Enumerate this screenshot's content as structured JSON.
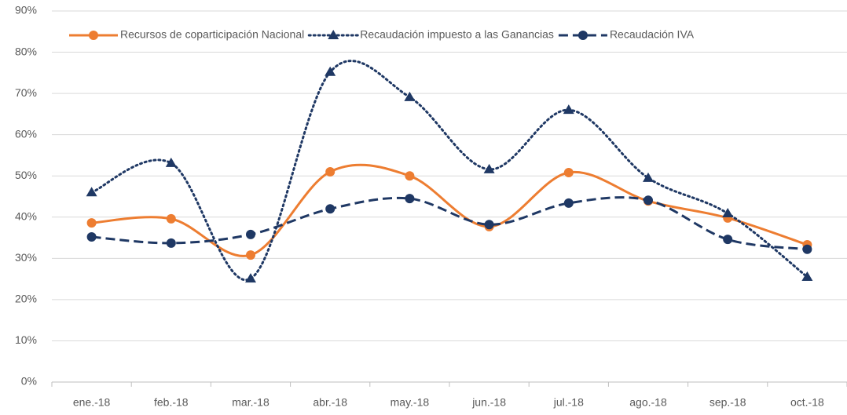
{
  "chart_data": {
    "type": "line",
    "categories": [
      "ene.-18",
      "feb.-18",
      "mar.-18",
      "abr.-18",
      "may.-18",
      "jun.-18",
      "jul.-18",
      "ago.-18",
      "sep.-18",
      "oct.-18"
    ],
    "series": [
      {
        "name": "Recursos de coparticipación Nacional",
        "color": "#ed7d31",
        "dash": "solid",
        "marker": "circle",
        "smooth": true,
        "values": [
          38.6,
          39.6,
          30.8,
          51,
          50,
          37.7,
          50.8,
          43.9,
          39.8,
          33.3
        ]
      },
      {
        "name": "Recaudación impuesto a las Ganancias",
        "color": "#1f3864",
        "dash": "dotted",
        "marker": "triangle",
        "smooth": true,
        "values": [
          46,
          53.1,
          25.1,
          75.2,
          69.1,
          51.6,
          66,
          49.5,
          40.9,
          25.5
        ]
      },
      {
        "name": "Recaudación IVA",
        "color": "#1f3864",
        "dash": "dashed",
        "marker": "circle",
        "smooth": true,
        "values": [
          35.2,
          33.7,
          35.8,
          42,
          44.5,
          38.2,
          43.4,
          44.1,
          34.6,
          32.2
        ]
      }
    ],
    "ylim": [
      0,
      90
    ],
    "yticks": [
      {
        "value": 0,
        "label": "0%"
      },
      {
        "value": 10,
        "label": "10%"
      },
      {
        "value": 20,
        "label": "20%"
      },
      {
        "value": 30,
        "label": "30%"
      },
      {
        "value": 40,
        "label": "40%"
      },
      {
        "value": 50,
        "label": "50%"
      },
      {
        "value": 60,
        "label": "60%"
      },
      {
        "value": 70,
        "label": "70%"
      },
      {
        "value": 80,
        "label": "80%"
      },
      {
        "value": 90,
        "label": "90%"
      }
    ],
    "grid": true,
    "legend": "top"
  }
}
